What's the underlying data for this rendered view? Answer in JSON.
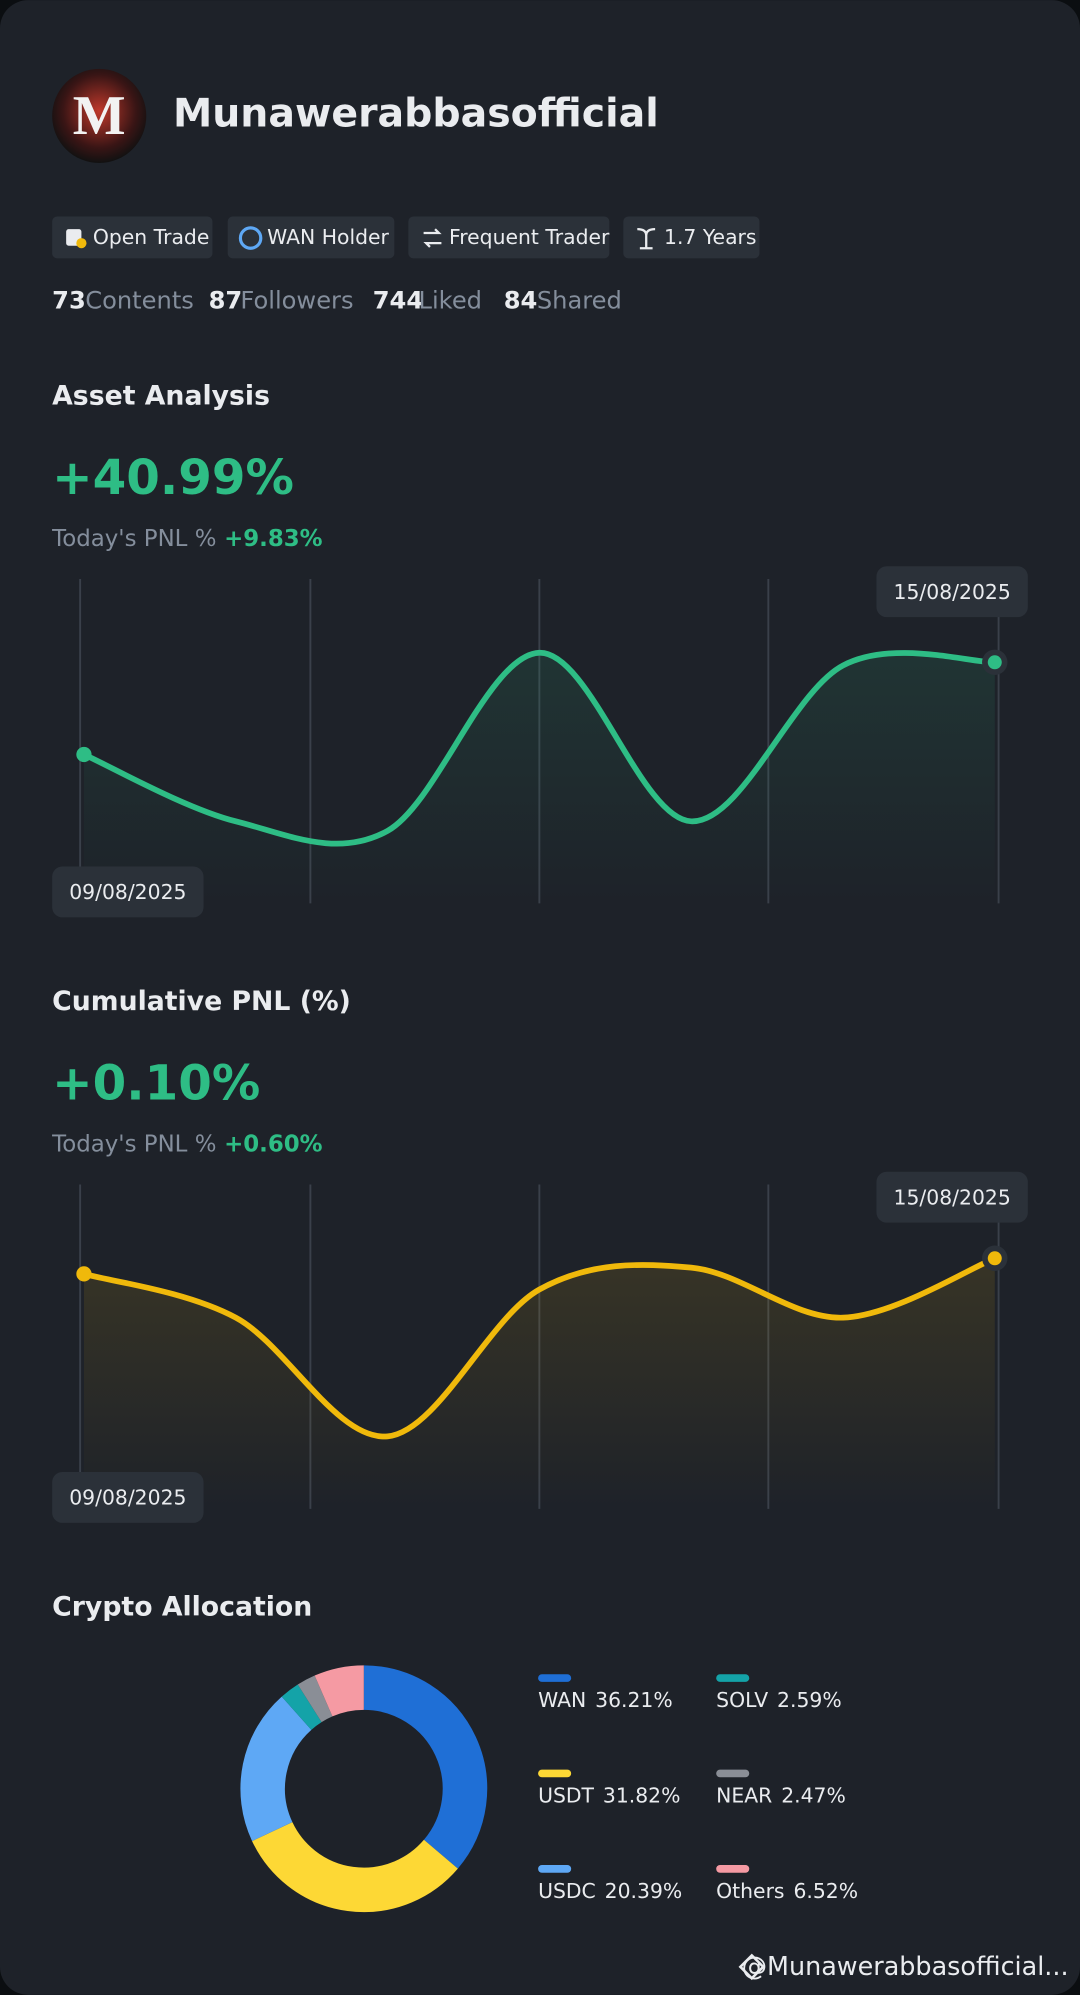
{
  "profile": {
    "name": "Munawerabbasofficial"
  },
  "badges": [
    "Open Trade",
    "WAN Holder",
    "Frequent Trader",
    "1.7 Years"
  ],
  "stats": [
    {
      "value": 73,
      "label": "Contents"
    },
    {
      "value": 87,
      "label": "Followers"
    },
    {
      "value": 744,
      "label": "Liked"
    },
    {
      "value": 84,
      "label": "Shared"
    }
  ],
  "chart_data": [
    {
      "type": "line",
      "title": "Asset Analysis",
      "headline": "+40.99%",
      "pnl_label": "Today's PNL %",
      "pnl_value": "+9.83%",
      "categories": [
        "09/08/2025",
        null,
        null,
        null,
        null,
        null,
        "15/08/2025"
      ],
      "values": [
        47,
        26,
        23,
        79,
        26,
        75,
        76
      ],
      "color": "#2ebd85"
    },
    {
      "type": "line",
      "title": "Cumulative PNL (%)",
      "headline": "+0.10%",
      "pnl_label": "Today's PNL %",
      "pnl_value": "+0.60%",
      "categories": [
        "09/08/2025",
        null,
        null,
        null,
        null,
        null,
        "15/08/2025"
      ],
      "values": [
        74,
        60,
        22,
        69,
        76,
        60,
        79
      ],
      "color": "#f0b90b"
    },
    {
      "type": "pie",
      "title": "Crypto Allocation",
      "categories": [
        "WAN",
        "USDT",
        "USDC",
        "SOLV",
        "NEAR",
        "Others"
      ],
      "values": [
        36.21,
        31.82,
        20.39,
        2.59,
        2.47,
        6.52
      ],
      "value_labels": [
        "36.21%",
        "31.82%",
        "20.39%",
        "2.59%",
        "2.47%",
        "6.52%"
      ],
      "colors": [
        "#1f6fd6",
        "#fdd835",
        "#5ea8f5",
        "#14a3a8",
        "#8a8e96",
        "#f59aa3"
      ]
    }
  ],
  "footer": {
    "watermark": "@Munawerabbasofficial..."
  }
}
